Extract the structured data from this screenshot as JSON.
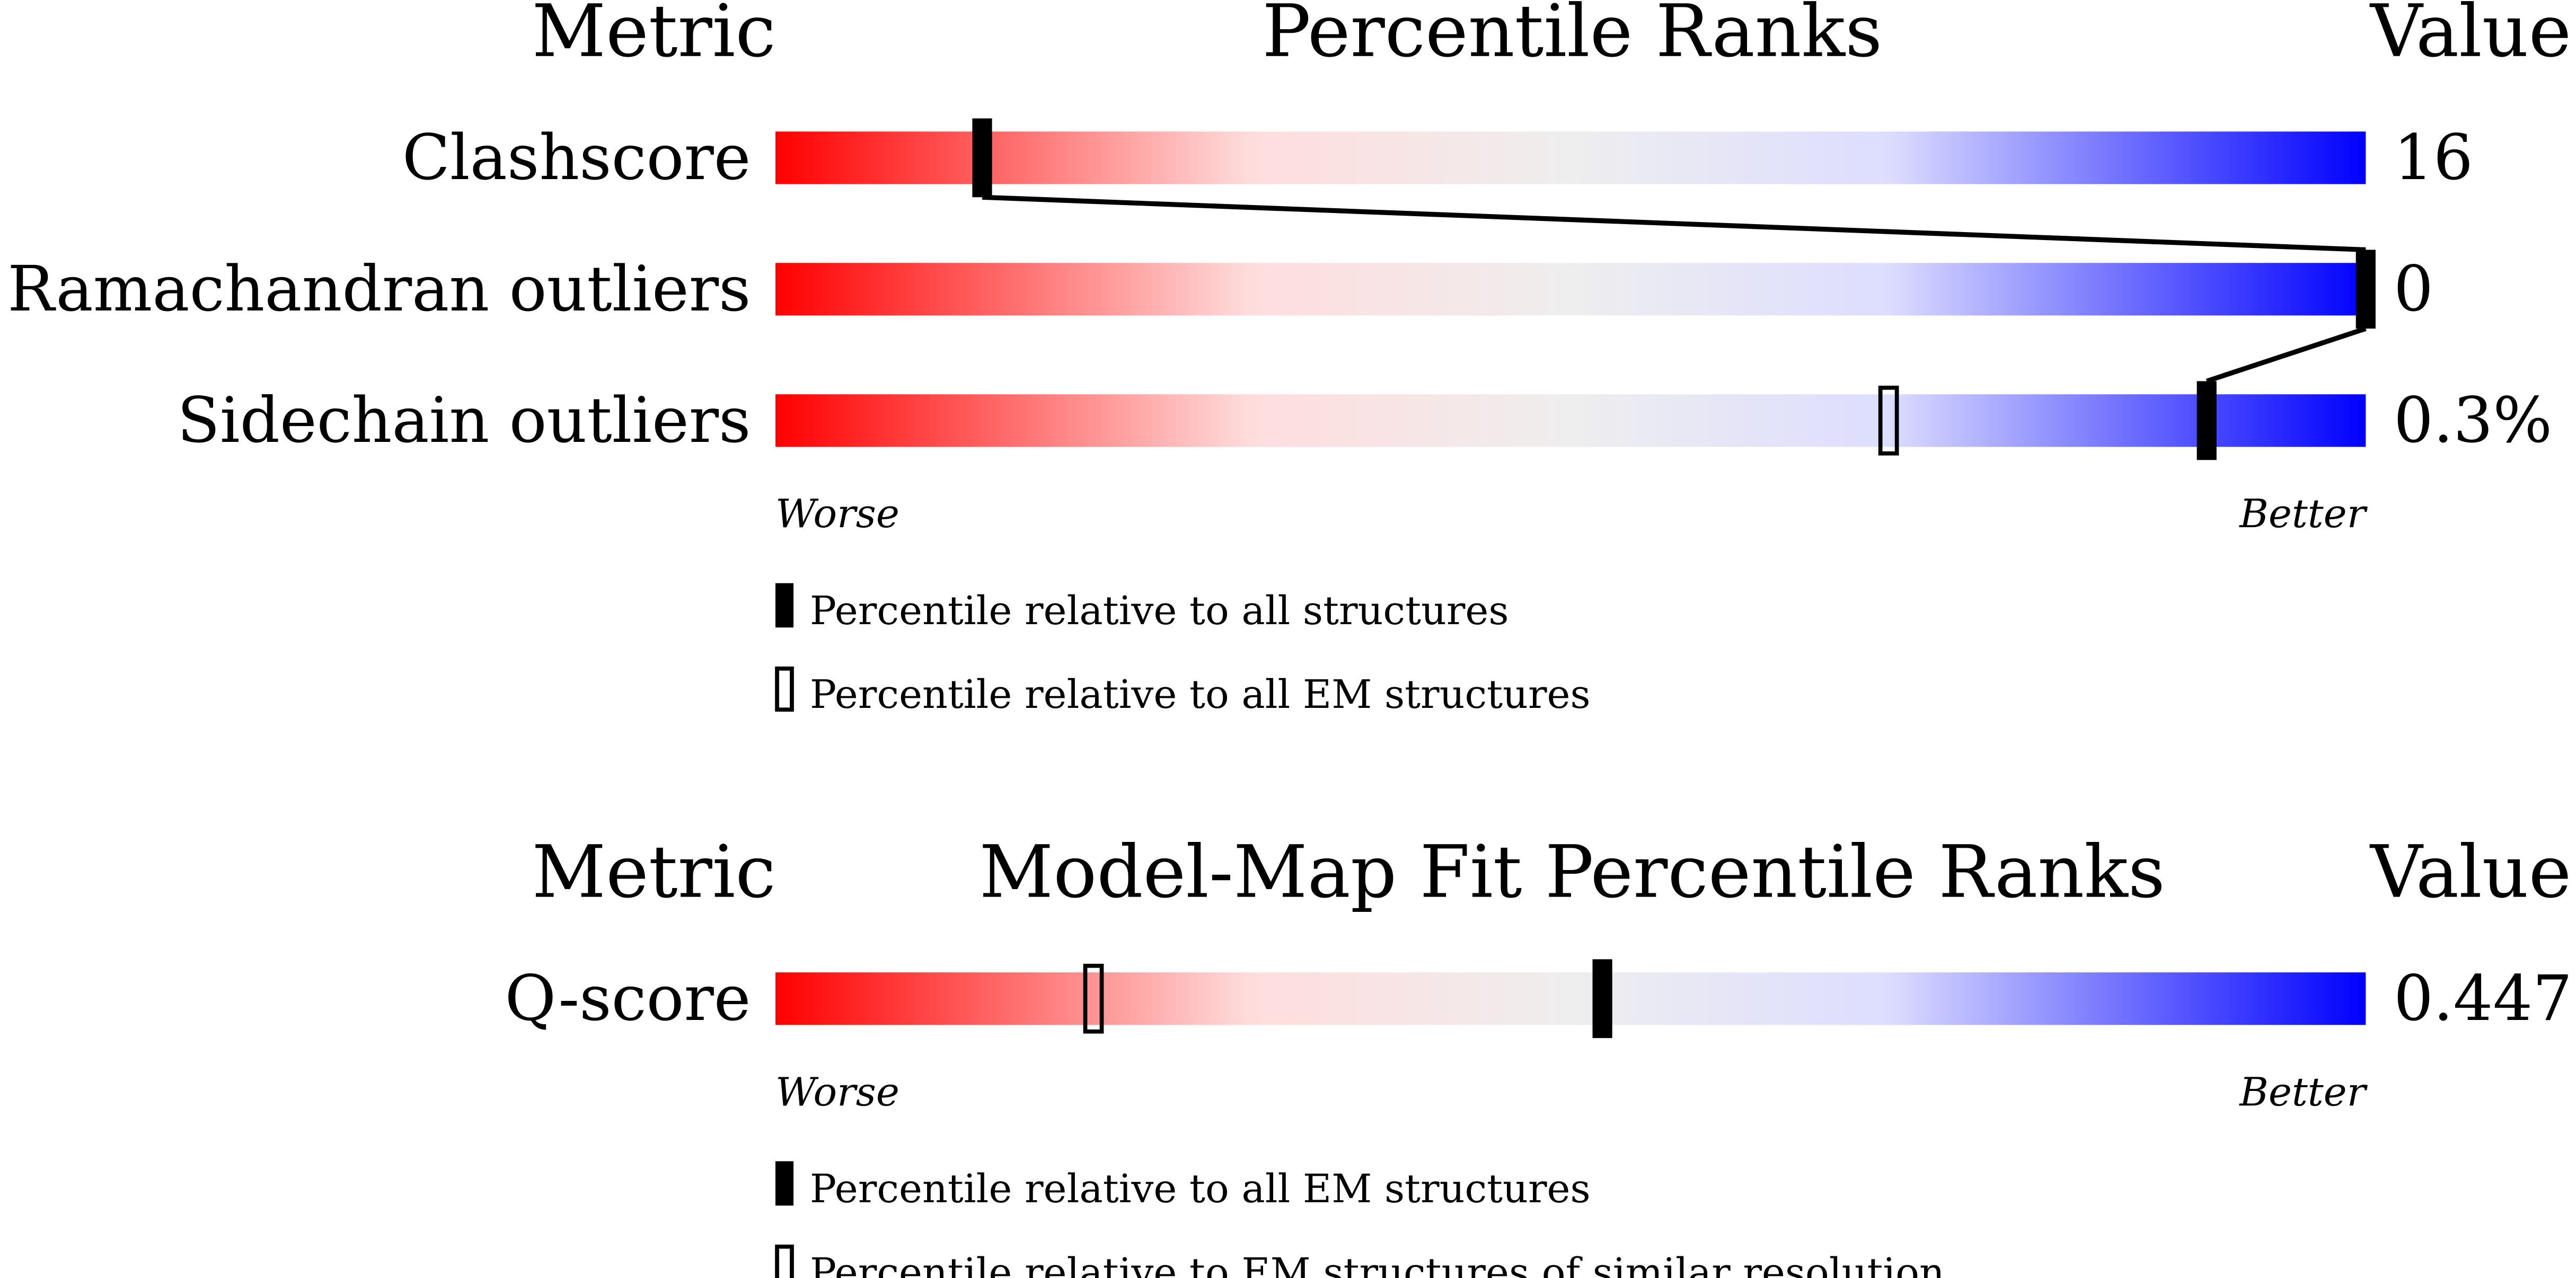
{
  "chart_data": [
    {
      "type": "percentile-slider",
      "header": {
        "metric": "Metric",
        "title": "Percentile Ranks",
        "value": "Value"
      },
      "scale": {
        "min_label": "Worse",
        "max_label": "Better",
        "range": [
          0,
          100
        ]
      },
      "gradient_colors": [
        "#ff0000",
        "#ffdddd",
        "#eeeeee",
        "#ddddff",
        "#0000ff"
      ],
      "rows": [
        {
          "metric": "Clashscore",
          "value": "16",
          "percentile_all": 13,
          "percentile_em": null
        },
        {
          "metric": "Ramachandran outliers",
          "value": "0",
          "percentile_all": 100,
          "percentile_em": null
        },
        {
          "metric": "Sidechain outliers",
          "value": "0.3%",
          "percentile_all": 90,
          "percentile_em": 70
        }
      ],
      "legend": [
        {
          "marker": "filled",
          "label": "Percentile relative to all structures"
        },
        {
          "marker": "open",
          "label": "Percentile relative to all EM structures"
        }
      ],
      "connect_filled_markers": true
    },
    {
      "type": "percentile-slider",
      "header": {
        "metric": "Metric",
        "title": "Model-Map Fit Percentile Ranks",
        "value": "Value"
      },
      "scale": {
        "min_label": "Worse",
        "max_label": "Better",
        "range": [
          0,
          100
        ]
      },
      "gradient_colors": [
        "#ff0000",
        "#ffdddd",
        "#eeeeee",
        "#ddddff",
        "#0000ff"
      ],
      "rows": [
        {
          "metric": "Q-score",
          "value": "0.447",
          "percentile_all": 52,
          "percentile_em": 20
        }
      ],
      "legend": [
        {
          "marker": "filled",
          "label": "Percentile relative to all EM structures"
        },
        {
          "marker": "open",
          "label": "Percentile relative to EM structures of similar resolution"
        }
      ],
      "connect_filled_markers": false
    }
  ]
}
